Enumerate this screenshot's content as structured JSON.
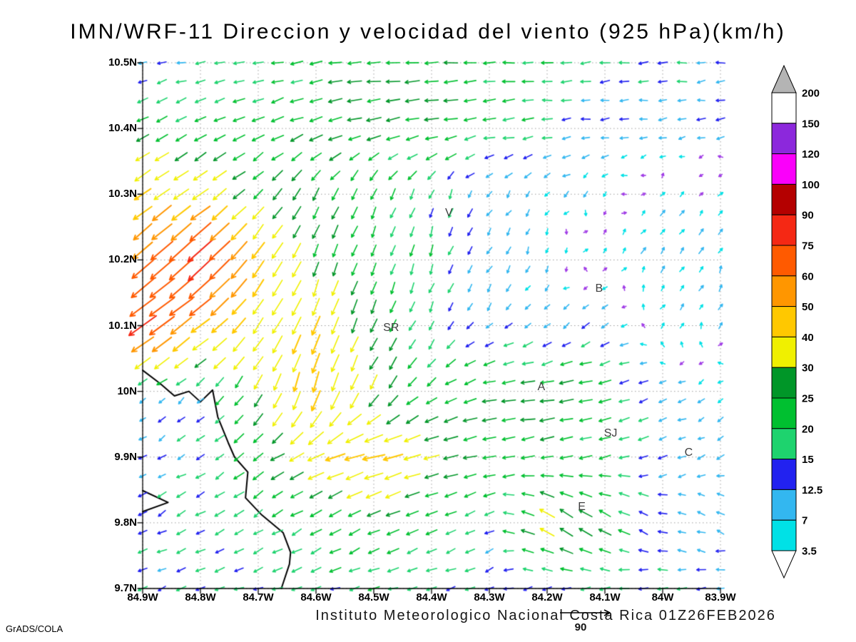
{
  "title": "IMN/WRF-11 Direccion y velocidad del viento (925 hPa)(km/h)",
  "footer": {
    "caption": "Instituto Meteorologico Nacional Costa Rica 01Z26FEB2026",
    "reference_arrow_label": "90",
    "credit": "GrADS/COLA"
  },
  "chart_data": {
    "type": "vector_field_map",
    "title": "IMN/WRF-11 Direccion y velocidad del viento (925 hPa)(km/h)",
    "units": "km/h",
    "grid": "dotted",
    "lon_range": [
      84.9,
      83.9
    ],
    "lat_range": [
      9.7,
      10.5
    ],
    "lon_ticks": [
      84.9,
      84.8,
      84.7,
      84.6,
      84.5,
      84.4,
      84.3,
      84.2,
      84.1,
      84.0,
      83.9
    ],
    "lat_ticks": [
      9.7,
      9.8,
      9.9,
      10.0,
      10.1,
      10.2,
      10.3,
      10.4,
      10.5
    ],
    "lon_tick_labels": [
      "84.9W",
      "84.8W",
      "84.7W",
      "84.6W",
      "84.5W",
      "84.4W",
      "84.3W",
      "84.2W",
      "84.1W",
      "84W",
      "83.9W"
    ],
    "lat_tick_labels": [
      "9.7N",
      "9.8N",
      "9.9N",
      "10N",
      "10.1N",
      "10.2N",
      "10.3N",
      "10.4N",
      "10.5N"
    ],
    "colorbar": {
      "position": "right",
      "levels": [
        3.5,
        7,
        12.5,
        15,
        20,
        25,
        30,
        40,
        50,
        60,
        75,
        90,
        100,
        120,
        150,
        200
      ],
      "band_colors": [
        "#00e1e6",
        "#33b7f0",
        "#2222f0",
        "#1ed36e",
        "#00c030",
        "#009628",
        "#f0f000",
        "#ffc800",
        "#ff9600",
        "#ff5a00",
        "#f52814",
        "#b40000",
        "#fa00fa",
        "#8c28dc",
        "#ffffff"
      ],
      "under_triangle_color": "#ffffff",
      "over_triangle_color": "#b4b4b4",
      "below_range_arrow_color": "#a03ce6",
      "labels_top_to_bottom": [
        "200",
        "150",
        "120",
        "100",
        "90",
        "75",
        "60",
        "50",
        "40",
        "30",
        "25",
        "20",
        "15",
        "12.5",
        "7",
        "3.5"
      ]
    },
    "wind_grid": {
      "units": "km/h",
      "lats": [
        9.7,
        9.8,
        9.9,
        10.0,
        10.1,
        10.2,
        10.3,
        10.4,
        10.5
      ],
      "lons": [
        84.9,
        84.8,
        84.7,
        84.6,
        84.5,
        84.4,
        84.3,
        84.2,
        84.1,
        84.0,
        83.9
      ],
      "u": [
        [
          -12,
          -14,
          -15,
          -16,
          -18,
          -16,
          -14,
          -14,
          -15,
          -14,
          -12
        ],
        [
          -12,
          -14,
          -16,
          -18,
          -22,
          -18,
          -12,
          -30,
          -22,
          -12,
          -10
        ],
        [
          -10,
          -12,
          -18,
          -35,
          -45,
          -30,
          -25,
          -22,
          -20,
          -12,
          -8
        ],
        [
          -8,
          -10,
          -15,
          -12,
          -15,
          -18,
          -25,
          -28,
          -22,
          -10,
          -5
        ],
        [
          -62,
          -40,
          -20,
          -15,
          -10,
          -8,
          -8,
          -8,
          -10,
          2,
          3
        ],
        [
          -45,
          -60,
          -25,
          -10,
          -8,
          -6,
          -5,
          -3,
          4,
          5,
          4
        ],
        [
          -35,
          -30,
          -18,
          -12,
          -8,
          -6,
          -5,
          -4,
          -3,
          3,
          3
        ],
        [
          -20,
          -18,
          -20,
          -24,
          -26,
          -26,
          -22,
          -16,
          -12,
          -10,
          -10
        ],
        [
          -12,
          -15,
          -18,
          -22,
          -25,
          -25,
          -22,
          -18,
          -16,
          -15,
          -14
        ]
      ],
      "v": [
        [
          -4,
          -5,
          -5,
          -5,
          -5,
          -4,
          -4,
          -3,
          -3,
          -3,
          -3
        ],
        [
          -6,
          -8,
          -10,
          -10,
          -10,
          -8,
          -5,
          20,
          14,
          5,
          4
        ],
        [
          -5,
          -8,
          -15,
          -15,
          -12,
          -8,
          -5,
          -4,
          -5,
          -4,
          -4
        ],
        [
          -5,
          -8,
          -25,
          -45,
          -25,
          -12,
          -5,
          -4,
          -5,
          -4,
          -3
        ],
        [
          -45,
          -30,
          -30,
          -40,
          -25,
          -15,
          -8,
          -6,
          -8,
          5,
          5
        ],
        [
          -40,
          -55,
          -35,
          -25,
          -20,
          -18,
          -10,
          -5,
          6,
          8,
          6
        ],
        [
          -25,
          -22,
          -18,
          -22,
          -20,
          -15,
          -8,
          -5,
          -4,
          4,
          3
        ],
        [
          -10,
          -8,
          -10,
          -8,
          -6,
          -5,
          -3,
          -2,
          -2,
          -2,
          -2
        ],
        [
          -2,
          -3,
          -4,
          -3,
          -2,
          -2,
          -1,
          -1,
          -1,
          -1,
          -1
        ]
      ]
    },
    "stations": [
      {
        "label": "V",
        "lon": 84.37,
        "lat": 10.27
      },
      {
        "label": "B",
        "lon": 84.11,
        "lat": 10.155
      },
      {
        "label": "SR",
        "lon": 84.47,
        "lat": 10.095
      },
      {
        "label": "A",
        "lon": 84.21,
        "lat": 10.005
      },
      {
        "label": "SJ",
        "lon": 84.09,
        "lat": 9.935
      },
      {
        "label": "C",
        "lon": 83.955,
        "lat": 9.905
      },
      {
        "label": "E",
        "lon": 84.14,
        "lat": 9.823
      }
    ],
    "coastline": [
      [
        84.9,
        10.032
      ],
      [
        84.87,
        10.012
      ],
      [
        84.845,
        9.993
      ],
      [
        84.82,
        10.0
      ],
      [
        84.8,
        9.984
      ],
      [
        84.779,
        10.002
      ],
      [
        84.77,
        9.961
      ],
      [
        84.752,
        9.922
      ],
      [
        84.741,
        9.9
      ],
      [
        84.718,
        9.877
      ],
      [
        84.722,
        9.838
      ],
      [
        84.694,
        9.812
      ],
      [
        84.657,
        9.785
      ],
      [
        84.644,
        9.755
      ],
      [
        84.646,
        9.737
      ],
      [
        84.66,
        9.7
      ]
    ],
    "coastline_spike": [
      [
        84.9,
        9.849
      ],
      [
        84.856,
        9.831
      ],
      [
        84.9,
        9.817
      ]
    ],
    "reference_arrow_speed": 90
  }
}
